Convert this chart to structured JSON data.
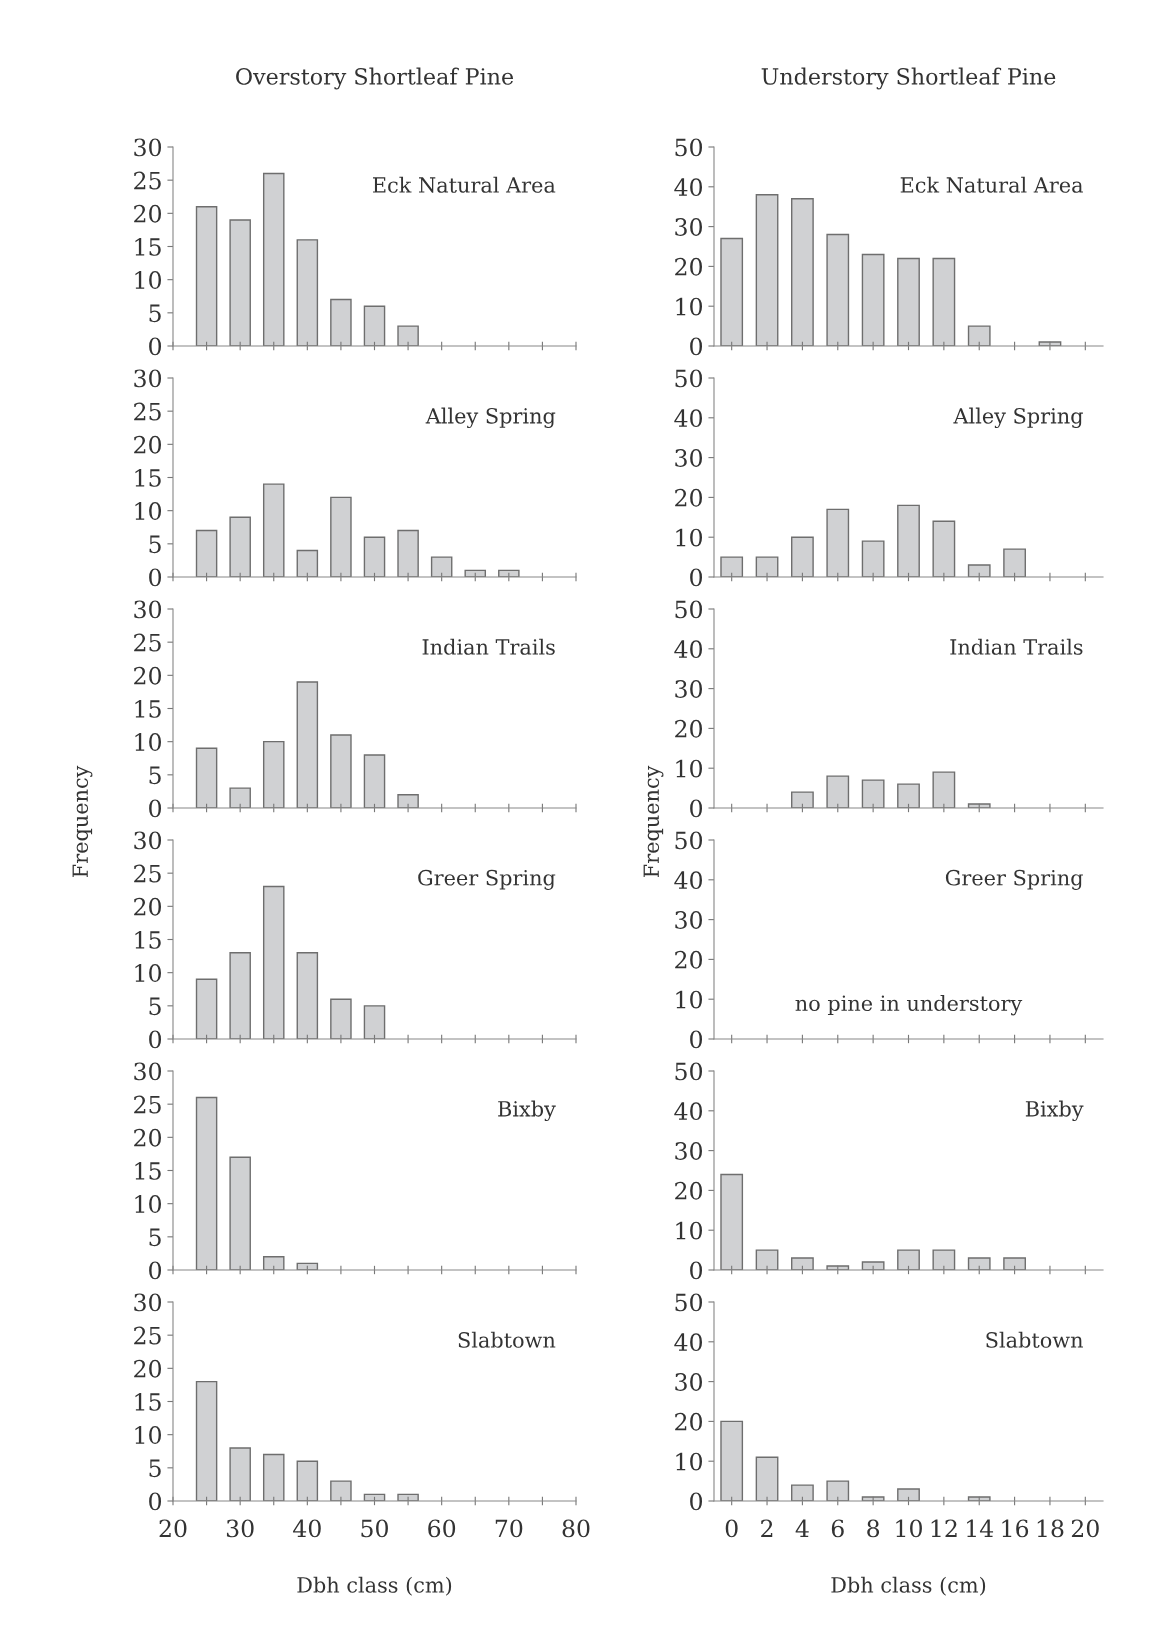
{
  "chart_data": [
    {
      "type": "bar",
      "title": "Overstory Shortleaf Pine",
      "x": [
        25,
        30,
        35,
        40,
        45,
        50,
        55
      ],
      "values": [
        21,
        19,
        26,
        16,
        7,
        6,
        3
      ],
      "color": "#d0d1d3",
      "xlim": [
        20,
        80
      ],
      "xticks": [
        20,
        {
          "value": 25,
          "label": null
        },
        30,
        {
          "value": 35,
          "label": null
        },
        40,
        {
          "value": 45,
          "label": null
        },
        50,
        {
          "value": 55,
          "label": null
        },
        60,
        {
          "value": 65,
          "label": null
        },
        70,
        {
          "value": 75,
          "label": null
        },
        80
      ],
      "ylim": [
        0,
        30
      ],
      "yticks": [
        0,
        5,
        10,
        15,
        20,
        25,
        30
      ],
      "tick_labels": "y",
      "annotations": [
        "Eck Natural Area"
      ]
    },
    {
      "type": "bar",
      "title": "Understory Shortleaf Pine",
      "x": [
        0,
        2,
        4,
        6,
        8,
        10,
        12,
        14,
        16,
        18
      ],
      "values": [
        27,
        38,
        37,
        28,
        23,
        22,
        22,
        5,
        null,
        1
      ],
      "color": "#d0d1d3",
      "xlim": [
        -1,
        21
      ],
      "xticks": [
        0,
        2,
        4,
        6,
        8,
        10,
        12,
        14,
        16,
        18,
        20
      ],
      "ylim": [
        0,
        50
      ],
      "yticks": [
        0,
        10,
        20,
        30,
        40,
        50
      ],
      "tick_labels": "y",
      "annotations": [
        "Eck Natural Area"
      ]
    },
    {
      "type": "bar",
      "x": [
        25,
        30,
        35,
        40,
        45,
        50,
        55,
        60,
        65,
        70
      ],
      "values": [
        7,
        9,
        14,
        4,
        12,
        6,
        7,
        3,
        1,
        1
      ],
      "color": "#d0d1d3",
      "xlim": [
        20,
        80
      ],
      "xticks": [
        20,
        {
          "value": 25,
          "label": null
        },
        30,
        {
          "value": 35,
          "label": null
        },
        40,
        {
          "value": 45,
          "label": null
        },
        50,
        {
          "value": 55,
          "label": null
        },
        60,
        {
          "value": 65,
          "label": null
        },
        70,
        {
          "value": 75,
          "label": null
        },
        80
      ],
      "ylim": [
        0,
        30
      ],
      "yticks": [
        0,
        5,
        10,
        15,
        20,
        25,
        30
      ],
      "tick_labels": "y",
      "annotations": [
        "Alley Spring"
      ]
    },
    {
      "type": "bar",
      "x": [
        0,
        2,
        4,
        6,
        8,
        10,
        12,
        14,
        16
      ],
      "values": [
        5,
        5,
        10,
        17,
        9,
        18,
        14,
        3,
        7
      ],
      "color": "#d0d1d3",
      "xlim": [
        -1,
        21
      ],
      "xticks": [
        0,
        2,
        4,
        6,
        8,
        10,
        12,
        14,
        16,
        18,
        20
      ],
      "ylim": [
        0,
        50
      ],
      "yticks": [
        0,
        10,
        20,
        30,
        40,
        50
      ],
      "tick_labels": "y",
      "annotations": [
        "Alley Spring"
      ]
    },
    {
      "type": "bar",
      "x": [
        25,
        30,
        35,
        40,
        45,
        50,
        55
      ],
      "values": [
        9,
        3,
        10,
        19,
        11,
        8,
        2
      ],
      "color": "#d0d1d3",
      "xlim": [
        20,
        80
      ],
      "xticks": [
        20,
        {
          "value": 25,
          "label": null
        },
        30,
        {
          "value": 35,
          "label": null
        },
        40,
        {
          "value": 45,
          "label": null
        },
        50,
        {
          "value": 55,
          "label": null
        },
        60,
        {
          "value": 65,
          "label": null
        },
        70,
        {
          "value": 75,
          "label": null
        },
        80
      ],
      "ylim": [
        0,
        30
      ],
      "yticks": [
        0,
        5,
        10,
        15,
        20,
        25,
        30
      ],
      "tick_labels": "y",
      "ylabel": "Frequency",
      "annotations": [
        "Indian Trails"
      ]
    },
    {
      "type": "bar",
      "x": [
        4,
        6,
        8,
        10,
        12,
        14
      ],
      "values": [
        4,
        8,
        7,
        6,
        9,
        1
      ],
      "color": "#d0d1d3",
      "xlim": [
        -1,
        21
      ],
      "xticks": [
        0,
        2,
        4,
        6,
        8,
        10,
        12,
        14,
        16,
        18,
        20
      ],
      "ylim": [
        0,
        50
      ],
      "yticks": [
        0,
        10,
        20,
        30,
        40,
        50
      ],
      "tick_labels": "y",
      "ylabel": "Frequency",
      "annotations": [
        "Indian Trails"
      ]
    },
    {
      "type": "bar",
      "x": [
        25,
        30,
        35,
        40,
        45,
        50
      ],
      "values": [
        9,
        13,
        23,
        13,
        6,
        5
      ],
      "color": "#d0d1d3",
      "xlim": [
        20,
        80
      ],
      "xticks": [
        20,
        {
          "value": 25,
          "label": null
        },
        30,
        {
          "value": 35,
          "label": null
        },
        40,
        {
          "value": 45,
          "label": null
        },
        50,
        {
          "value": 55,
          "label": null
        },
        60,
        {
          "value": 65,
          "label": null
        },
        70,
        {
          "value": 75,
          "label": null
        },
        80
      ],
      "ylim": [
        0,
        30
      ],
      "yticks": [
        0,
        5,
        10,
        15,
        20,
        25,
        30
      ],
      "tick_labels": "y",
      "annotations": [
        "Greer Spring"
      ]
    },
    {
      "type": "bar",
      "xlim": [
        -1,
        21
      ],
      "xticks": [
        0,
        2,
        4,
        6,
        8,
        10,
        12,
        14,
        16,
        18,
        20
      ],
      "ylim": [
        0,
        50
      ],
      "yticks": [
        0,
        10,
        20,
        30,
        40,
        50
      ],
      "tick_labels": "y",
      "annotations": [
        "Greer Spring",
        "no pine in understory"
      ]
    },
    {
      "type": "bar",
      "x": [
        25,
        30,
        35,
        40
      ],
      "values": [
        26,
        17,
        2,
        1
      ],
      "color": "#d0d1d3",
      "xlim": [
        20,
        80
      ],
      "xticks": [
        20,
        {
          "value": 25,
          "label": null
        },
        30,
        {
          "value": 35,
          "label": null
        },
        40,
        {
          "value": 45,
          "label": null
        },
        50,
        {
          "value": 55,
          "label": null
        },
        60,
        {
          "value": 65,
          "label": null
        },
        70,
        {
          "value": 75,
          "label": null
        },
        80
      ],
      "ylim": [
        0,
        30
      ],
      "yticks": [
        0,
        5,
        10,
        15,
        20,
        25,
        30
      ],
      "tick_labels": "y",
      "annotations": [
        "Bixby"
      ]
    },
    {
      "type": "bar",
      "x": [
        0,
        2,
        4,
        6,
        8,
        10,
        12,
        14,
        16
      ],
      "values": [
        24,
        5,
        3,
        1,
        2,
        5,
        5,
        3,
        3
      ],
      "color": "#d0d1d3",
      "xlim": [
        -1,
        21
      ],
      "xticks": [
        0,
        2,
        4,
        6,
        8,
        10,
        12,
        14,
        16,
        18,
        20
      ],
      "ylim": [
        0,
        50
      ],
      "yticks": [
        0,
        10,
        20,
        30,
        40,
        50
      ],
      "tick_labels": "y",
      "annotations": [
        "Bixby"
      ]
    },
    {
      "type": "bar",
      "x": [
        25,
        30,
        35,
        40,
        45,
        50,
        55
      ],
      "values": [
        18,
        8,
        7,
        6,
        3,
        1,
        1
      ],
      "color": "#d0d1d3",
      "xlim": [
        20,
        80
      ],
      "xticks": [
        20,
        {
          "value": 25,
          "label": null
        },
        30,
        {
          "value": 35,
          "label": null
        },
        40,
        {
          "value": 45,
          "label": null
        },
        50,
        {
          "value": 55,
          "label": null
        },
        60,
        {
          "value": 65,
          "label": null
        },
        70,
        {
          "value": 75,
          "label": null
        },
        80
      ],
      "ylim": [
        0,
        30
      ],
      "yticks": [
        0,
        5,
        10,
        15,
        20,
        25,
        30
      ],
      "xlabel": "Dbh class (cm)",
      "annotations": [
        "Slabtown"
      ]
    },
    {
      "type": "bar",
      "x": [
        0,
        2,
        4,
        6,
        8,
        10,
        12,
        14
      ],
      "values": [
        20,
        11,
        4,
        5,
        1,
        3,
        null,
        1
      ],
      "color": "#d0d1d3",
      "xlim": [
        -1,
        21
      ],
      "xticks": [
        0,
        2,
        4,
        6,
        8,
        10,
        12,
        14,
        16,
        18,
        20
      ],
      "ylim": [
        0,
        50
      ],
      "yticks": [
        0,
        10,
        20,
        30,
        40,
        50
      ],
      "xlabel": "Dbh class (cm)",
      "annotations": [
        "Slabtown"
      ]
    }
  ]
}
